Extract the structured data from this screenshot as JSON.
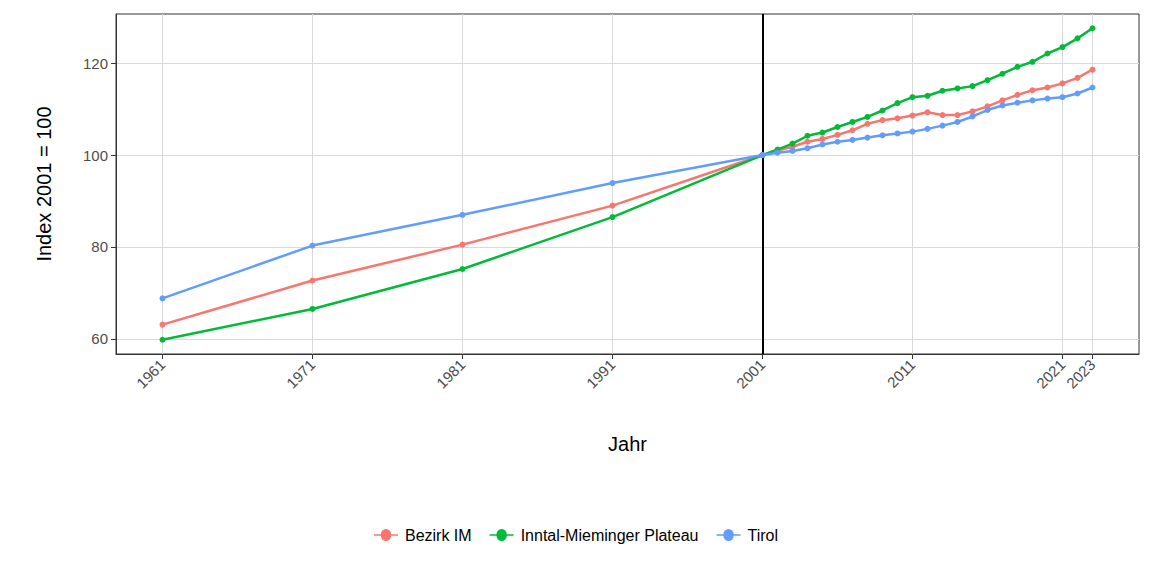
{
  "chart_data": {
    "type": "line",
    "x_label": "Jahr",
    "y_label": "Index 2001 = 100",
    "x": [
      1961,
      1971,
      1981,
      1991,
      2001,
      2002,
      2003,
      2004,
      2005,
      2006,
      2007,
      2008,
      2009,
      2010,
      2011,
      2012,
      2013,
      2014,
      2015,
      2016,
      2017,
      2018,
      2019,
      2020,
      2021,
      2022,
      2023
    ],
    "series": [
      {
        "name": "Bezirk IM",
        "color": "#F8766D",
        "values": [
          63.1,
          72.7,
          80.5,
          89.0,
          100,
          101.0,
          101.8,
          102.9,
          103.5,
          104.4,
          105.4,
          106.8,
          107.6,
          108.0,
          108.6,
          109.3,
          108.7,
          108.7,
          109.5,
          110.6,
          111.9,
          113.1,
          114.1,
          114.7,
          115.6,
          116.8,
          118.6
        ]
      },
      {
        "name": "Inntal-Mieminger Plateau",
        "color": "#00BA38",
        "values": [
          59.8,
          66.5,
          75.2,
          86.5,
          100,
          101.2,
          102.5,
          104.2,
          104.9,
          106.1,
          107.2,
          108.3,
          109.7,
          111.3,
          112.6,
          112.9,
          114.0,
          114.5,
          115.0,
          116.3,
          117.7,
          119.2,
          120.3,
          122.1,
          123.5,
          125.4,
          127.6
        ]
      },
      {
        "name": "Tirol",
        "color": "#619CFF",
        "values": [
          68.8,
          80.3,
          87.0,
          93.9,
          100,
          100.5,
          100.9,
          101.5,
          102.3,
          102.9,
          103.3,
          103.8,
          104.3,
          104.7,
          105.1,
          105.7,
          106.4,
          107.2,
          108.4,
          109.8,
          110.8,
          111.4,
          111.9,
          112.3,
          112.6,
          113.4,
          114.7
        ]
      }
    ],
    "xlim": [
      1957.9,
      2026.1
    ],
    "xticks": [
      1961,
      1971,
      1981,
      1991,
      2001,
      2011,
      2021,
      2023
    ],
    "ylim": [
      56.7,
      130.7
    ],
    "yticks": [
      60,
      80,
      100,
      120
    ],
    "reference_line_x": 2001,
    "grid": true,
    "legend": "bottom",
    "marker": "circle"
  }
}
